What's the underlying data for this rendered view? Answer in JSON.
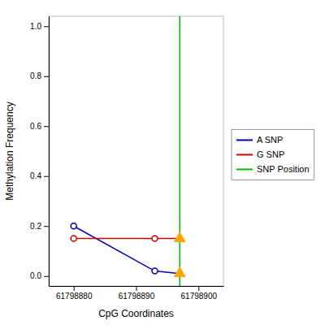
{
  "chart_data": {
    "type": "line",
    "xlabel": "CpG Coordinates",
    "ylabel": "Methylation Frequency",
    "xlim": [
      61798876,
      61798904
    ],
    "ylim": [
      -0.04,
      1.04
    ],
    "xticks": [
      61798880,
      61798890,
      61798900
    ],
    "yticks": [
      {
        "value": 0.0,
        "label": "0.0"
      },
      0.2,
      0.4,
      0.6,
      0.8,
      {
        "value": 1.0,
        "label": "1.0"
      }
    ],
    "grid": false,
    "legend": "right",
    "series": [
      {
        "name": "A SNP",
        "type": "line",
        "color": "#0000BB",
        "marker": "circle",
        "line_style": "solid",
        "x": [
          61798880,
          61798893,
          61798897
        ],
        "values": [
          0.2,
          0.02,
          0.01
        ]
      },
      {
        "name": "G SNP",
        "type": "line",
        "color": "#CC0000",
        "marker": "circle",
        "line_style": "solid",
        "x": [
          61798880,
          61798893,
          61798897
        ],
        "values": [
          0.15,
          0.15,
          0.15
        ]
      },
      {
        "name": "SNP Position",
        "type": "vline",
        "color": "#00BB00",
        "line_style": "solid",
        "x": [
          61798897
        ]
      },
      {
        "type": "scatter",
        "color": "#FFA500",
        "marker": "triangle",
        "x": [
          61798897,
          61798897
        ],
        "values": [
          0.15,
          0.01
        ]
      }
    ]
  }
}
